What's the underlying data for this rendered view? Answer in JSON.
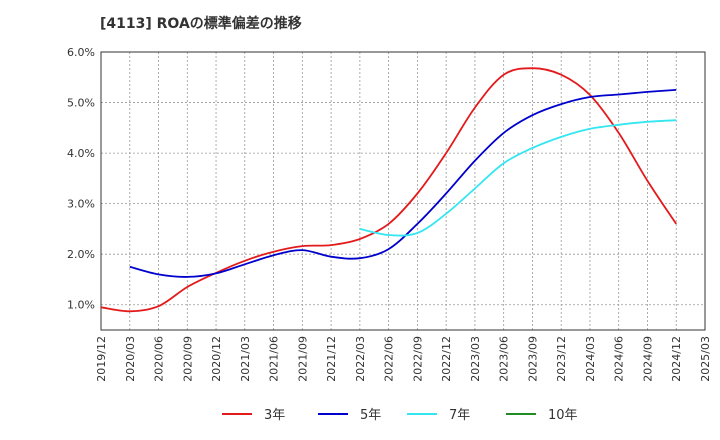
{
  "chart_data": {
    "type": "line",
    "title": "[4113]  ROAの標準偏差の推移",
    "ylim": [
      0.5,
      6.0
    ],
    "yticks": [
      "1.0%",
      "2.0%",
      "3.0%",
      "4.0%",
      "5.0%",
      "6.0%"
    ],
    "ytick_values": [
      1.0,
      2.0,
      3.0,
      4.0,
      5.0,
      6.0
    ],
    "xticks": [
      "2019/12",
      "2020/03",
      "2020/06",
      "2020/09",
      "2020/12",
      "2021/03",
      "2021/06",
      "2021/09",
      "2021/12",
      "2022/03",
      "2022/06",
      "2022/09",
      "2022/12",
      "2023/03",
      "2023/06",
      "2023/09",
      "2023/12",
      "2024/03",
      "2024/06",
      "2024/09",
      "2024/12",
      "2025/03"
    ],
    "grid": true,
    "legend_position": "bottom",
    "series": [
      {
        "name": "3年",
        "color": "#e31a1c",
        "values": [
          0.95,
          0.87,
          0.97,
          1.35,
          1.63,
          1.87,
          2.05,
          2.16,
          2.18,
          2.3,
          2.6,
          3.2,
          4.0,
          4.9,
          5.55,
          5.68,
          5.55,
          5.15,
          4.4,
          3.45,
          2.6,
          null
        ]
      },
      {
        "name": "5年",
        "color": "#0000cc",
        "values": [
          null,
          1.75,
          1.6,
          1.55,
          1.62,
          1.8,
          1.98,
          2.08,
          1.95,
          1.92,
          2.1,
          2.6,
          3.2,
          3.85,
          4.4,
          4.75,
          4.97,
          5.11,
          5.16,
          5.21,
          5.25,
          null
        ]
      },
      {
        "name": "7年",
        "color": "#33e6f2",
        "values": [
          null,
          null,
          null,
          null,
          null,
          null,
          null,
          null,
          null,
          2.5,
          2.38,
          2.42,
          2.8,
          3.3,
          3.8,
          4.1,
          4.32,
          4.48,
          4.56,
          4.62,
          4.65,
          null
        ]
      },
      {
        "name": "10年",
        "color": "#228b22",
        "values": [
          null,
          null,
          null,
          null,
          null,
          null,
          null,
          null,
          null,
          null,
          null,
          null,
          null,
          null,
          null,
          null,
          null,
          null,
          null,
          null,
          null,
          null
        ]
      }
    ]
  }
}
